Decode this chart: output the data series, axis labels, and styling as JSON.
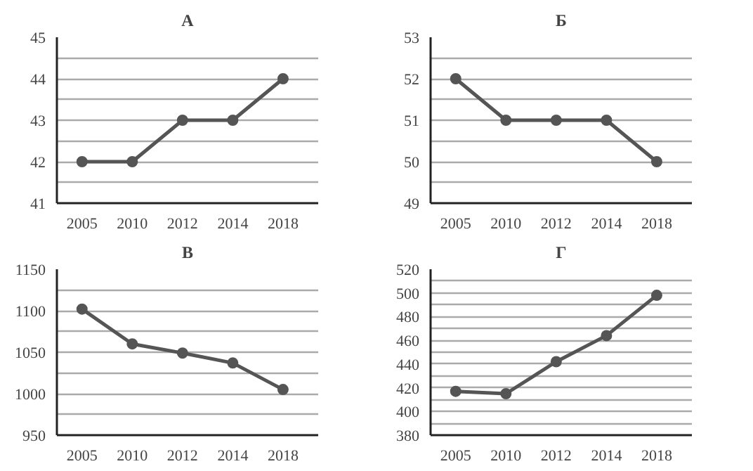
{
  "chart_data": [
    {
      "type": "line",
      "title": "А",
      "categories": [
        "2005",
        "2010",
        "2012",
        "2014",
        "2018"
      ],
      "series": [
        {
          "color": "#555555",
          "values": [
            42,
            42,
            43,
            43,
            44
          ]
        }
      ],
      "ylim": [
        41,
        45
      ],
      "yticks": [
        41,
        {
          "value": 41.5,
          "label": null
        },
        42,
        {
          "value": 42.5,
          "label": null
        },
        43,
        {
          "value": 43.5,
          "label": null
        },
        44,
        {
          "value": 44.5,
          "label": null
        },
        45
      ],
      "grid": "y",
      "marker": "circle",
      "line_style": "solid"
    },
    {
      "type": "line",
      "title": "Б",
      "categories": [
        "2005",
        "2010",
        "2012",
        "2014",
        "2018"
      ],
      "series": [
        {
          "color": "#555555",
          "values": [
            52,
            51,
            51,
            51,
            50
          ]
        }
      ],
      "ylim": [
        49,
        53
      ],
      "yticks": [
        49,
        {
          "value": 49.5,
          "label": null
        },
        50,
        {
          "value": 50.5,
          "label": null
        },
        51,
        {
          "value": 51.5,
          "label": null
        },
        52,
        {
          "value": 52.5,
          "label": null
        },
        53
      ],
      "grid": "y",
      "marker": "circle",
      "line_style": "solid"
    },
    {
      "type": "line",
      "title": "В",
      "categories": [
        "2005",
        "2010",
        "2012",
        "2014",
        "2018"
      ],
      "series": [
        {
          "color": "#555555",
          "values": [
            1102,
            1060,
            1049,
            1037,
            1005
          ]
        }
      ],
      "ylim": [
        950,
        1150
      ],
      "yticks": [
        950,
        {
          "value": 975,
          "label": null
        },
        1000,
        {
          "value": 1025,
          "label": null
        },
        1050,
        {
          "value": 1075,
          "label": null
        },
        1100,
        {
          "value": 1125,
          "label": null
        },
        1150
      ],
      "grid": "y",
      "marker": "circle",
      "line_style": "solid"
    },
    {
      "type": "line",
      "title": "Г",
      "categories": [
        "2005",
        "2010",
        "2012",
        "2014",
        "2018"
      ],
      "series": [
        {
          "color": "#555555",
          "values": [
            417,
            415,
            442,
            464,
            498
          ]
        }
      ],
      "ylim": [
        380,
        520
      ],
      "yticks": [
        380,
        {
          "value": 390,
          "label": null
        },
        400,
        {
          "value": 410,
          "label": null
        },
        420,
        {
          "value": 430,
          "label": null
        },
        440,
        {
          "value": 450,
          "label": null
        },
        460,
        {
          "value": 470,
          "label": null
        },
        480,
        {
          "value": 490,
          "label": null
        },
        500,
        {
          "value": 510,
          "label": null
        },
        520
      ],
      "grid": "y",
      "marker": "circle",
      "line_style": "solid"
    }
  ]
}
